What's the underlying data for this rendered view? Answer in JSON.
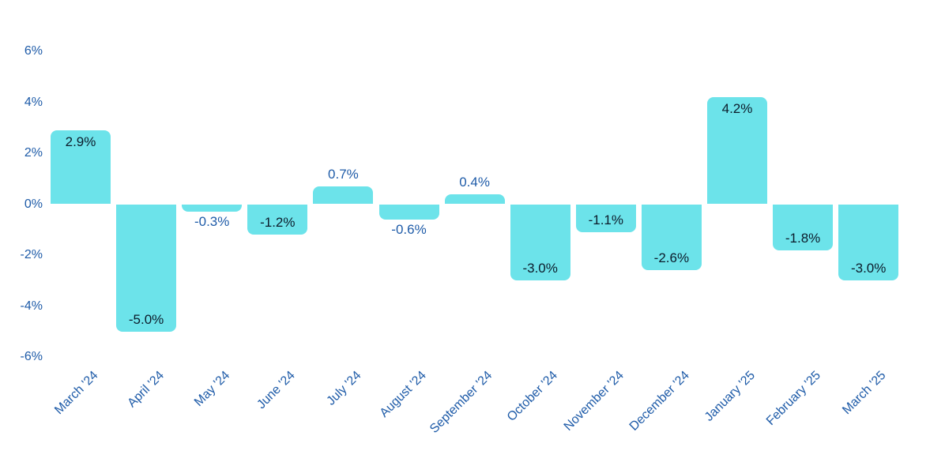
{
  "chart_data": {
    "type": "bar",
    "title": "",
    "xlabel": "",
    "ylabel": "",
    "categories": [
      "March '24",
      "April '24",
      "May '24",
      "June '24",
      "July '24",
      "August '24",
      "September '24",
      "October '24",
      "November '24",
      "December '24",
      "January '25",
      "February '25",
      "March '25"
    ],
    "values": [
      2.9,
      -5.0,
      -0.3,
      -1.2,
      0.7,
      -0.6,
      0.4,
      -3.0,
      -1.1,
      -2.6,
      4.2,
      -1.8,
      -3.0
    ],
    "value_labels": [
      "2.9%",
      "-5.0%",
      "-0.3%",
      "-1.2%",
      "0.7%",
      "-0.6%",
      "0.4%",
      "-3.0%",
      "-1.1%",
      "-2.6%",
      "4.2%",
      "-1.8%",
      "-3.0%"
    ],
    "ylim": [
      -6,
      6
    ],
    "ytick_values": [
      6,
      4,
      2,
      0,
      -2,
      -4,
      -6
    ],
    "ytick_labels": [
      "6%",
      "4%",
      "2%",
      "0%",
      "-2%",
      "-4%",
      "-6%"
    ],
    "grid": false,
    "legend": null,
    "colors": {
      "bar": "#6CE3EA",
      "axis_text": "#1E5BA8",
      "label_inside_bar": "#0C1C2B",
      "label_outside_bar": "#1E5BA8",
      "background": "#FFFFFF"
    }
  }
}
